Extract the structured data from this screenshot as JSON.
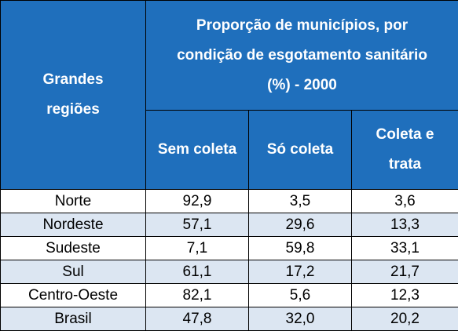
{
  "table": {
    "region_header": "Grandes regiões",
    "group_header": "Proporção de municípios, por condição de esgotamento sanitário (%) - 2000",
    "columns": [
      "Sem coleta",
      "Só coleta",
      "Coleta e trata"
    ],
    "rows": [
      [
        "Norte",
        "92,9",
        "3,5",
        "3,6"
      ],
      [
        "Nordeste",
        "57,1",
        "29,6",
        "13,3"
      ],
      [
        "Sudeste",
        "7,1",
        "59,8",
        "33,1"
      ],
      [
        "Sul",
        "61,1",
        "17,2",
        "21,7"
      ],
      [
        "Centro-Oeste",
        "82,1",
        "5,6",
        "12,3"
      ],
      [
        "Brasil",
        "47,8",
        "32,0",
        "20,2"
      ]
    ]
  }
}
